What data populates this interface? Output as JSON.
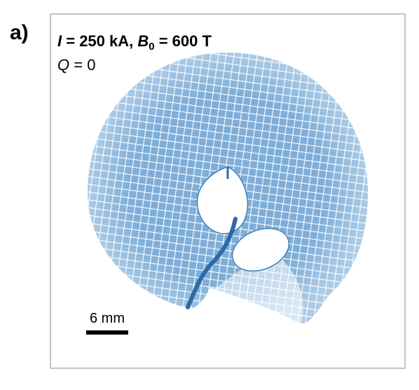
{
  "panel_label": "a)",
  "title": {
    "var1": "I",
    "text1": " = 250 kA, ",
    "var2": "B",
    "sub": "0",
    "text2": " = 600 T"
  },
  "subtitle": {
    "var": "Q",
    "text": " = 0"
  },
  "scale_bar": "6 mm"
}
